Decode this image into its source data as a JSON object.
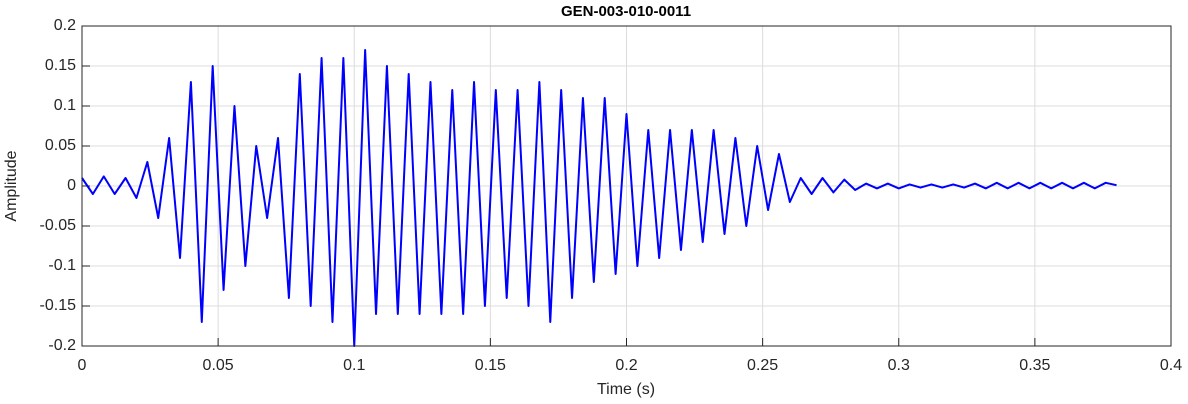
{
  "chart_data": {
    "type": "line",
    "title": "GEN-003-010-0011",
    "x_label": "Time (s)",
    "y_label": "Amplitude",
    "xlim": [
      0,
      0.4
    ],
    "xticks": [
      0,
      0.05,
      0.1,
      0.15,
      0.2,
      0.25,
      0.3,
      0.35,
      0.4
    ],
    "ylim": [
      -0.2,
      0.2
    ],
    "yticks": [
      0.2,
      0.15,
      0.1,
      0.05,
      0,
      -0.05,
      -0.1,
      -0.15,
      -0.2
    ],
    "grid": true,
    "color": "#0000ff",
    "x": [
      0,
      0.004,
      0.008,
      0.012,
      0.016,
      0.02,
      0.024,
      0.028,
      0.032,
      0.036,
      0.04,
      0.044,
      0.048,
      0.052,
      0.056,
      0.06,
      0.064,
      0.068,
      0.072,
      0.076,
      0.08,
      0.084,
      0.088,
      0.092,
      0.096,
      0.1,
      0.104,
      0.108,
      0.112,
      0.116,
      0.12,
      0.124,
      0.128,
      0.132,
      0.136,
      0.14,
      0.144,
      0.148,
      0.152,
      0.156,
      0.16,
      0.164,
      0.168,
      0.172,
      0.176,
      0.18,
      0.184,
      0.188,
      0.192,
      0.196,
      0.2,
      0.204,
      0.208,
      0.212,
      0.216,
      0.22,
      0.224,
      0.228,
      0.232,
      0.236,
      0.24,
      0.244,
      0.248,
      0.252,
      0.256,
      0.26,
      0.264,
      0.268,
      0.272,
      0.276,
      0.28,
      0.284,
      0.288,
      0.292,
      0.296,
      0.3,
      0.304,
      0.308,
      0.312,
      0.316,
      0.32,
      0.324,
      0.328,
      0.332,
      0.336,
      0.34,
      0.344,
      0.348,
      0.352,
      0.356,
      0.36,
      0.364,
      0.368,
      0.372,
      0.376,
      0.38
    ],
    "values": [
      0.01,
      -0.01,
      0.012,
      -0.01,
      0.01,
      -0.015,
      0.03,
      -0.04,
      0.06,
      -0.09,
      0.13,
      -0.17,
      0.15,
      -0.13,
      0.1,
      -0.1,
      0.05,
      -0.04,
      0.06,
      -0.14,
      0.14,
      -0.15,
      0.16,
      -0.17,
      0.16,
      -0.2,
      0.17,
      -0.16,
      0.15,
      -0.16,
      0.14,
      -0.16,
      0.13,
      -0.16,
      0.12,
      -0.16,
      0.13,
      -0.15,
      0.12,
      -0.14,
      0.12,
      -0.15,
      0.13,
      -0.17,
      0.12,
      -0.14,
      0.11,
      -0.12,
      0.11,
      -0.11,
      0.09,
      -0.1,
      0.07,
      -0.09,
      0.07,
      -0.08,
      0.07,
      -0.07,
      0.07,
      -0.06,
      0.06,
      -0.05,
      0.05,
      -0.03,
      0.04,
      -0.02,
      0.01,
      -0.01,
      0.01,
      -0.008,
      0.008,
      -0.005,
      0.003,
      -0.003,
      0.003,
      -0.003,
      0.002,
      -0.002,
      0.002,
      -0.002,
      0.002,
      -0.002,
      0.003,
      -0.003,
      0.004,
      -0.003,
      0.004,
      -0.003,
      0.004,
      -0.003,
      0.004,
      -0.003,
      0.004,
      -0.003,
      0.004,
      0.001
    ]
  }
}
